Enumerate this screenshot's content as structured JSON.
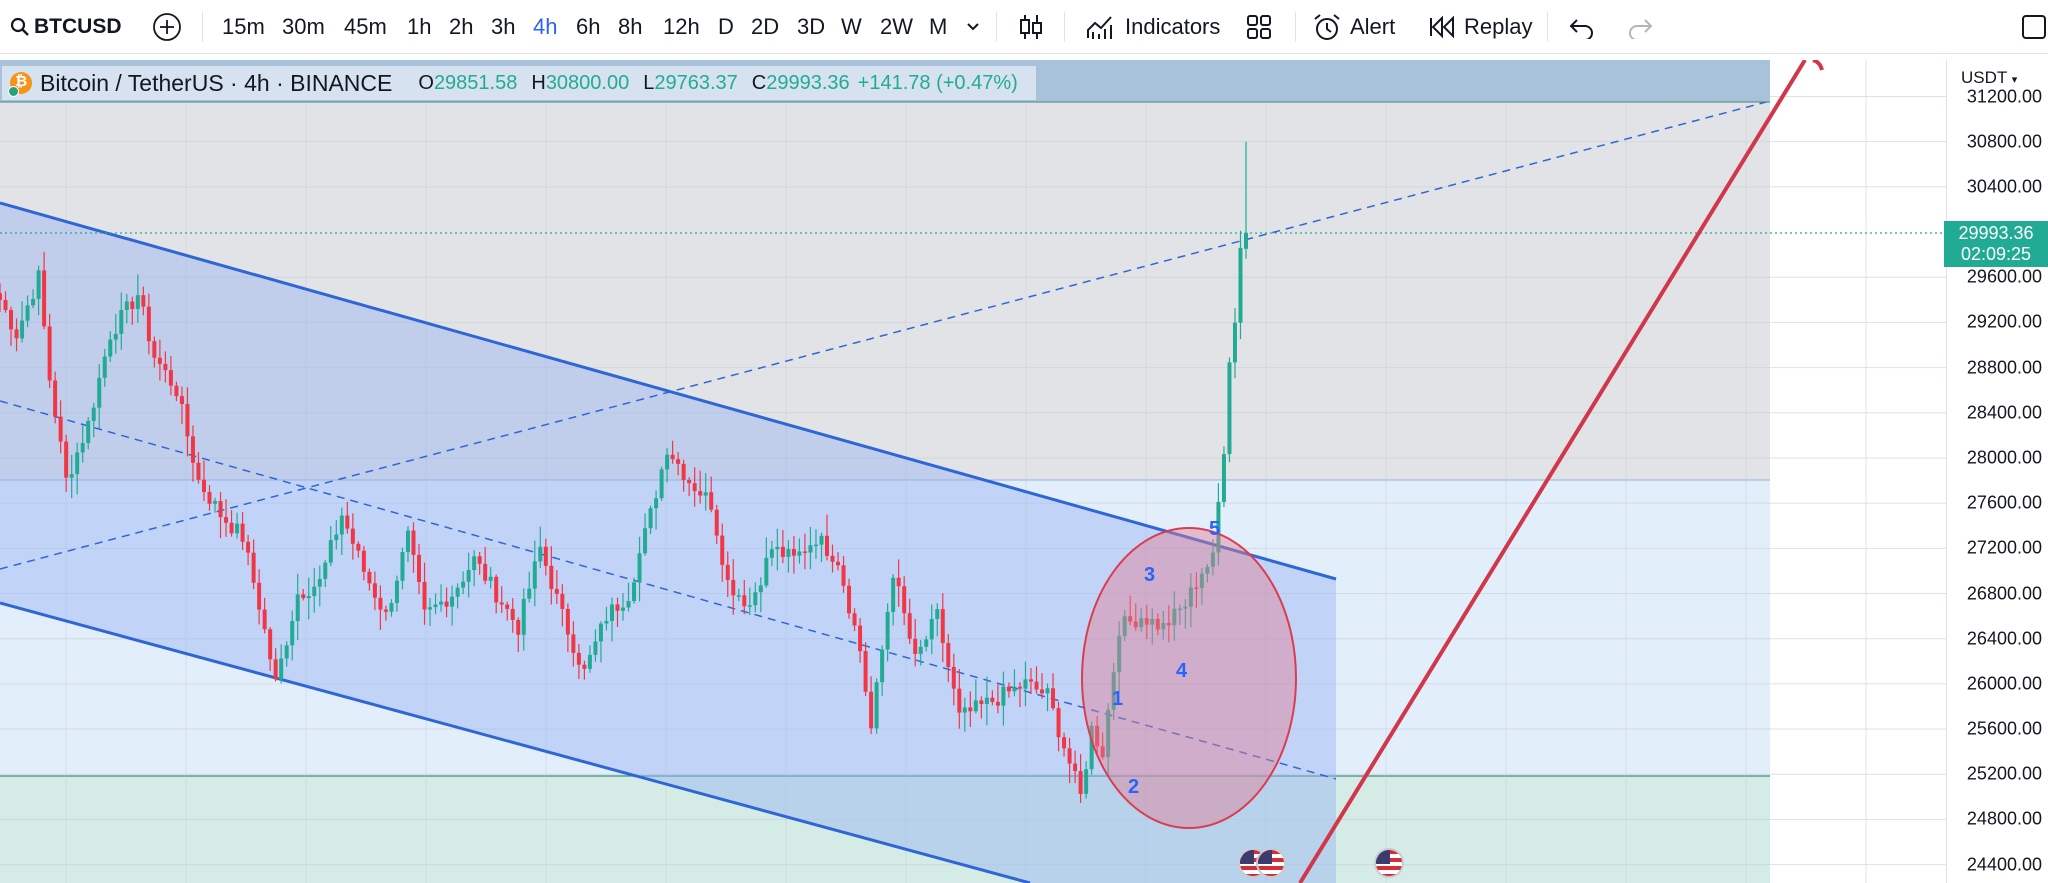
{
  "toolbar": {
    "symbol": "BTCUSD",
    "timeframes": [
      "15m",
      "30m",
      "45m",
      "1h",
      "2h",
      "3h",
      "4h",
      "6h",
      "8h",
      "12h",
      "D",
      "2D",
      "3D",
      "W",
      "2W",
      "M"
    ],
    "active_timeframe": "4h",
    "indicators_label": "Indicators",
    "alert_label": "Alert",
    "replay_label": "Replay"
  },
  "legend": {
    "title": "Bitcoin / TetherUS · 4h · BINANCE",
    "open_key": "O",
    "open": "29851.58",
    "high_key": "H",
    "high": "30800.00",
    "low_key": "L",
    "low": "29763.37",
    "close_key": "C",
    "close": "29993.36",
    "change": "+141.78 (+0.47%)"
  },
  "price_axis": {
    "unit": "USDT",
    "labels": [
      "31200.00",
      "30800.00",
      "30400.00",
      "29600.00",
      "29200.00",
      "28800.00",
      "28400.00",
      "28000.00",
      "27600.00",
      "27200.00",
      "26800.00",
      "26400.00",
      "26000.00",
      "25600.00",
      "25200.00",
      "24800.00",
      "24400.00"
    ],
    "last_price": "29993.36",
    "countdown": "02:09:25"
  },
  "annotations": {
    "wave_labels": [
      "1",
      "2",
      "3",
      "4",
      "5"
    ]
  },
  "colors": {
    "up": "#22ab94",
    "down": "#f23645",
    "channel": "#2962ff",
    "trendline": "#d1374b",
    "accent": "#2962ff"
  },
  "chart_data": {
    "type": "candlestick",
    "ylim": [
      24300,
      31300
    ],
    "y_ticks": [
      24400,
      24800,
      25200,
      25600,
      26000,
      26400,
      26800,
      27200,
      27600,
      28000,
      28400,
      28800,
      29200,
      29600,
      30400,
      30800,
      31200
    ],
    "last_close": 29993.36,
    "path": [
      [
        0,
        29400
      ],
      [
        3,
        29100
      ],
      [
        7,
        29600
      ],
      [
        9,
        28700
      ],
      [
        12,
        27800
      ],
      [
        16,
        28300
      ],
      [
        20,
        29100
      ],
      [
        25,
        29450
      ],
      [
        28,
        28900
      ],
      [
        32,
        28600
      ],
      [
        36,
        27800
      ],
      [
        40,
        27500
      ],
      [
        44,
        27300
      ],
      [
        47,
        26700
      ],
      [
        50,
        26000
      ],
      [
        54,
        26800
      ],
      [
        58,
        26900
      ],
      [
        62,
        27500
      ],
      [
        66,
        27000
      ],
      [
        70,
        26600
      ],
      [
        74,
        27300
      ],
      [
        77,
        26600
      ],
      [
        82,
        26800
      ],
      [
        86,
        27100
      ],
      [
        90,
        26800
      ],
      [
        94,
        26500
      ],
      [
        98,
        27200
      ],
      [
        102,
        26600
      ],
      [
        106,
        26100
      ],
      [
        110,
        26600
      ],
      [
        114,
        26800
      ],
      [
        118,
        27500
      ],
      [
        121,
        28100
      ],
      [
        125,
        27800
      ],
      [
        129,
        27600
      ],
      [
        132,
        26900
      ],
      [
        136,
        26700
      ],
      [
        140,
        27200
      ],
      [
        144,
        27100
      ],
      [
        148,
        27300
      ],
      [
        152,
        27100
      ],
      [
        156,
        26300
      ],
      [
        158,
        25600
      ],
      [
        162,
        27000
      ],
      [
        166,
        26200
      ],
      [
        170,
        26600
      ],
      [
        174,
        25700
      ],
      [
        178,
        25800
      ],
      [
        182,
        25900
      ],
      [
        186,
        26000
      ],
      [
        190,
        25900
      ],
      [
        194,
        25300
      ],
      [
        196,
        25000
      ],
      [
        198,
        25600
      ],
      [
        200,
        25400
      ],
      [
        203,
        26500
      ],
      [
        207,
        26600
      ],
      [
        211,
        26500
      ],
      [
        215,
        26700
      ],
      [
        218,
        27000
      ],
      [
        220,
        27100
      ],
      [
        222,
        28100
      ],
      [
        223,
        28900
      ],
      [
        224,
        29200
      ],
      [
        225,
        29900
      ],
      [
        226,
        29993.36
      ]
    ]
  }
}
